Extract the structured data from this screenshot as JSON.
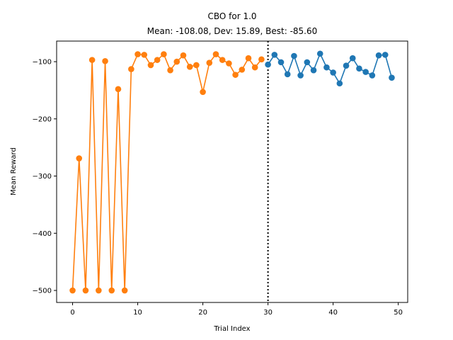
{
  "chart_data": {
    "type": "line",
    "title": "CBO for 1.0",
    "subtitle": "Mean: -108.08, Dev: 15.89, Best: -85.60",
    "xlabel": "Trial Index",
    "ylabel": "Mean Reward",
    "xlim": [
      -2.45,
      51.45
    ],
    "ylim": [
      -521,
      -64
    ],
    "xticks": [
      0,
      10,
      20,
      30,
      40,
      50
    ],
    "yticks": [
      -500,
      -400,
      -300,
      -200,
      -100
    ],
    "xtick_labels": [
      "0",
      "10",
      "20",
      "30",
      "40",
      "50"
    ],
    "ytick_labels": [
      "−500",
      "−400",
      "−300",
      "−200",
      "−100"
    ],
    "grid": false,
    "vline": {
      "x": 30,
      "style": "dotted",
      "color": "#000000"
    },
    "series": [
      {
        "color": "#ff7f0e",
        "x": [
          0,
          1,
          2,
          3,
          4,
          5,
          6,
          7,
          8,
          9,
          10,
          11,
          12,
          13,
          14,
          15,
          16,
          17,
          18,
          19,
          20,
          21,
          22,
          23,
          24,
          25,
          26,
          27,
          28,
          29
        ],
        "y": [
          -500,
          -269,
          -500,
          -97,
          -500,
          -99,
          -500,
          -148,
          -500,
          -113,
          -87,
          -88,
          -106,
          -97,
          -87,
          -115,
          -100,
          -89,
          -109,
          -106,
          -153,
          -102,
          -87,
          -97,
          -103,
          -123,
          -114,
          -94,
          -110,
          -96
        ]
      },
      {
        "color": "#1f77b4",
        "x": [
          30,
          31,
          32,
          33,
          34,
          35,
          36,
          37,
          38,
          39,
          40,
          41,
          42,
          43,
          44,
          45,
          46,
          47,
          48,
          49
        ],
        "y": [
          -105,
          -88,
          -101,
          -122,
          -90,
          -124,
          -101,
          -115,
          -86,
          -110,
          -119,
          -138,
          -107,
          -94,
          -112,
          -118,
          -124,
          -89,
          -88,
          -128
        ]
      }
    ]
  }
}
